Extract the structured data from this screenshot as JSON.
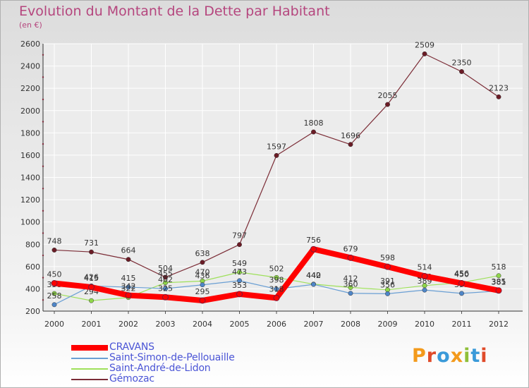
{
  "title": "Evolution du Montant de la Dette par Habitant",
  "unit_label": "(en €)",
  "brand": {
    "text": "Proxiti",
    "letter_colors": [
      "#f39a1c",
      "#e04b2a",
      "#3a9ad9",
      "#f39a1c",
      "#8fbf3a",
      "#3a9ad9",
      "#e04b2a"
    ]
  },
  "chart_data": {
    "type": "line",
    "x": [
      "2000",
      "2001",
      "2002",
      "2003",
      "2004",
      "2005",
      "2006",
      "2007",
      "2008",
      "2009",
      "2010",
      "2011",
      "2012"
    ],
    "ylim": [
      200,
      2600
    ],
    "y_ticks": [
      200,
      400,
      600,
      800,
      1000,
      1200,
      1400,
      1600,
      1800,
      2000,
      2200,
      2400,
      2600
    ],
    "grid": true,
    "legend_position": "bottom-left",
    "series": [
      {
        "name": "Gémozac",
        "color": "#7b2c36",
        "marker": "#6b1c26",
        "line_width": 1.2,
        "values": [
          748,
          731,
          664,
          504,
          638,
          797,
          1597,
          1808,
          1696,
          2055,
          2509,
          2350,
          2123
        ]
      },
      {
        "name": "Saint-André-de-Lidon",
        "color": "#9ee05a",
        "marker": "#8fd64a",
        "line_width": 1.2,
        "values": [
          358,
          294,
          322,
          455,
          470,
          549,
          502,
          442,
          412,
          391,
          429,
          456,
          518
        ]
      },
      {
        "name": "Saint-Simon-de-Pellouaille",
        "color": "#6a9fd4",
        "marker": "#4f86c8",
        "line_width": 1.2,
        "values": [
          258,
          426,
          415,
          402,
          436,
          473,
          398,
          440,
          360,
          356,
          389,
          359,
          381
        ]
      },
      {
        "name": "CRAVANS",
        "color": "#ff0000",
        "marker": "#ff0000",
        "line_width": 8,
        "values": [
          450,
          415,
          342,
          325,
          295,
          353,
          318,
          756,
          679,
          598,
          514,
          450,
          385
        ]
      }
    ],
    "legend_order": [
      "CRAVANS",
      "Saint-Simon-de-Pellouaille",
      "Saint-André-de-Lidon",
      "Gémozac"
    ]
  }
}
